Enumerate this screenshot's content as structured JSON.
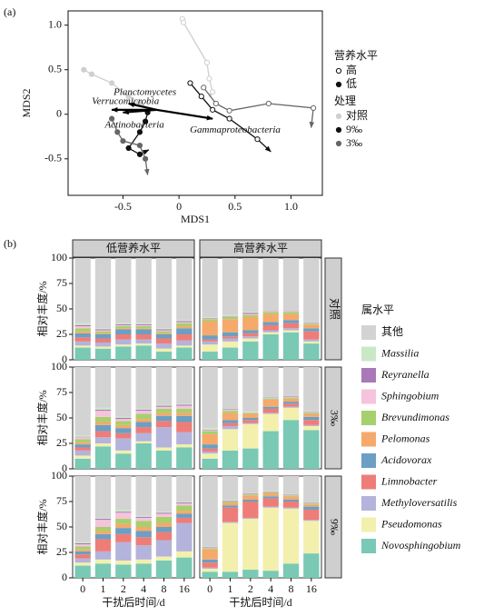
{
  "chart_data": [
    {
      "type": "scatter",
      "label": "(a)",
      "x_label": "MDS1",
      "y_label": "MDS2",
      "xlim": [
        -0.99,
        1.28
      ],
      "ylim": [
        -0.91,
        1.16
      ],
      "xticks": [
        -0.5,
        0,
        0.5,
        {
          "value": 1,
          "label": "1.0"
        }
      ],
      "yticks": [
        -0.5,
        0,
        0.5,
        {
          "value": 1,
          "label": "1.0"
        }
      ],
      "series": [
        {
          "color": "#cfcfcf",
          "marker": "open",
          "x": [
            0.03,
            0.04,
            0.25,
            0.27,
            0.3,
            0.27
          ],
          "y": [
            1.07,
            1.03,
            0.58,
            0.4,
            0.25,
            0.2
          ]
        },
        {
          "color": "#cfcfcf",
          "marker": "filled",
          "x": [
            -0.85,
            -0.78,
            -0.6,
            -0.45,
            -0.35,
            -0.3
          ],
          "y": [
            0.5,
            0.45,
            0.35,
            0.2,
            0.12,
            0.08
          ]
        },
        {
          "color": "#111111",
          "marker": "open",
          "x": [
            0.1,
            0.2,
            0.3,
            0.45,
            0.7,
            0.82
          ],
          "y": [
            0.35,
            0.2,
            0.05,
            -0.05,
            -0.28,
            -0.42
          ]
        },
        {
          "color": "#111111",
          "marker": "filled",
          "x": [
            -0.28,
            -0.3,
            -0.35,
            -0.45,
            -0.35,
            -0.27
          ],
          "y": [
            0.02,
            -0.08,
            -0.2,
            -0.38,
            -0.45,
            -0.4
          ]
        },
        {
          "color": "#666666",
          "marker": "open",
          "x": [
            0.22,
            0.33,
            0.45,
            0.8,
            1.2,
            1.18
          ],
          "y": [
            0.3,
            0.12,
            0.04,
            0.12,
            0.07,
            -0.15
          ]
        },
        {
          "color": "#666666",
          "marker": "filled",
          "x": [
            -0.6,
            -0.55,
            -0.5,
            -0.35,
            -0.3,
            -0.28
          ],
          "y": [
            -0.05,
            -0.2,
            -0.3,
            -0.35,
            -0.5,
            -0.68
          ]
        }
      ],
      "vectors": [
        {
          "label": "Planctomycetes",
          "x": [
            -0.2,
            -0.45
          ],
          "y": [
            0.05,
            0.12
          ]
        },
        {
          "label": "Verrucomicrobia",
          "x": [
            -0.2,
            -0.6
          ],
          "y": [
            0.05,
            0.05
          ]
        },
        {
          "label": "Actinobacteria",
          "x": [
            -0.2,
            -0.5
          ],
          "y": [
            0.05,
            0.02
          ]
        },
        {
          "label": "Gammaproteobacteria",
          "x": [
            -0.2,
            0.3
          ],
          "y": [
            0.05,
            -0.05
          ]
        }
      ],
      "legend": [
        {
          "title": "营养水平",
          "items": [
            {
              "label": "高",
              "marker": "open"
            },
            {
              "label": "低",
              "marker": "filled"
            }
          ]
        },
        {
          "title": "处理",
          "items": [
            {
              "label": "对照",
              "color": "#cfcfcf"
            },
            {
              "label": "9‰",
              "color": "#111111"
            },
            {
              "label": "3‰",
              "color": "#666666"
            }
          ]
        }
      ]
    },
    {
      "type": "stacked_bar",
      "label": "(b)",
      "x_label": "干扰后时间/d",
      "y_label": "相对丰度/%",
      "legend_title": "属水平",
      "columns": [
        "低营养水平",
        "高营养水平"
      ],
      "rows": [
        "对照",
        "3‰",
        "9‰"
      ],
      "categories": [
        "0",
        "1",
        "2",
        "4",
        "8",
        "16"
      ],
      "ylim": [
        0,
        100
      ],
      "yticks": [
        0,
        25,
        50,
        75,
        100
      ],
      "series": [
        {
          "name": "Novosphingobium",
          "color": "#79c9b5"
        },
        {
          "name": "Pseudomonas",
          "color": "#f2f0ac"
        },
        {
          "name": "Methyloversatilis",
          "color": "#b4b3db"
        },
        {
          "name": "Limnobacter",
          "color": "#ee7d78"
        },
        {
          "name": "Acidovorax",
          "color": "#6b9fc3"
        },
        {
          "name": "Pelomonas",
          "color": "#f5a96b"
        },
        {
          "name": "Brevundimonas",
          "color": "#a6d06c"
        },
        {
          "name": "Sphingobium",
          "color": "#f5c4dc"
        },
        {
          "name": "Reyranella",
          "color": "#a878b8"
        },
        {
          "name": "Massilia",
          "color": "#c9e8c6"
        },
        {
          "name": "其他",
          "color": "#d3d3d3"
        }
      ],
      "panels": [
        [
          [
            [
              12,
              11,
              13,
              14,
              8,
              12
            ],
            [
              2,
              2,
              2,
              2,
              3,
              2
            ],
            [
              4,
              4,
              5,
              4,
              5,
              5
            ],
            [
              4,
              4,
              5,
              5,
              5,
              6
            ],
            [
              4,
              4,
              5,
              5,
              4,
              6
            ],
            [
              2,
              1,
              1,
              1,
              1,
              2
            ],
            [
              3,
              2,
              2,
              2,
              2,
              3
            ],
            [
              2,
              1,
              1,
              1,
              1,
              1
            ],
            [
              1,
              1,
              1,
              1,
              1,
              1
            ],
            [
              2,
              1,
              1,
              1,
              1,
              1
            ],
            [
              64,
              69,
              64,
              64,
              69,
              61
            ]
          ],
          [
            [
              8,
              12,
              18,
              25,
              27,
              16
            ],
            [
              7,
              6,
              3,
              2,
              2,
              2
            ],
            [
              3,
              3,
              2,
              2,
              2,
              2
            ],
            [
              2,
              2,
              3,
              5,
              5,
              8
            ],
            [
              4,
              4,
              3,
              3,
              3,
              3
            ],
            [
              14,
              13,
              13,
              8,
              6,
              3.5
            ],
            [
              2,
              2,
              2,
              2,
              2,
              1
            ],
            [
              0.5,
              0.5,
              1,
              1,
              1,
              0.5
            ],
            [
              0.5,
              0.5,
              1,
              0.5,
              0.5,
              0.5
            ],
            [
              1,
              1,
              1,
              0.5,
              0.5,
              0.5
            ],
            [
              58,
              56,
              53,
              51,
              51,
              63
            ]
          ]
        ],
        [
          [
            [
              10,
              22,
              15,
              25,
              18,
              21
            ],
            [
              3,
              3,
              3,
              2,
              3,
              3
            ],
            [
              5,
              6,
              12,
              8,
              20,
              12
            ],
            [
              3,
              6,
              5,
              6,
              6,
              10
            ],
            [
              3,
              6,
              5,
              5,
              5,
              6
            ],
            [
              2,
              3,
              3,
              3,
              3,
              3
            ],
            [
              3,
              5,
              4,
              5,
              4,
              4
            ],
            [
              2,
              6,
              2,
              3,
              2,
              3
            ],
            [
              0.5,
              1,
              1,
              1,
              1,
              1
            ],
            [
              1.5,
              2,
              1,
              1,
              1,
              1
            ],
            [
              67,
              40,
              49,
              41,
              37,
              36
            ]
          ],
          [
            [
              10,
              18,
              20,
              37,
              48,
              38
            ],
            [
              5,
              21,
              24,
              17,
              12,
              4
            ],
            [
              2,
              3,
              1,
              1,
              1,
              1
            ],
            [
              3,
              3,
              3,
              4,
              3,
              5
            ],
            [
              4,
              3,
              2,
              2,
              2,
              3
            ],
            [
              10,
              7,
              4,
              7,
              3,
              3
            ],
            [
              3,
              2,
              1,
              1,
              1,
              1
            ],
            [
              1,
              1,
              0.5,
              0.5,
              0.5,
              0.5
            ],
            [
              0.5,
              0.5,
              0,
              0.5,
              0.5,
              0.5
            ],
            [
              1.5,
              0.5,
              0.5,
              0.5,
              0.5,
              0.5
            ],
            [
              60,
              41,
              44,
              29.5,
              28.5,
              43.5
            ]
          ]
        ],
        [
          [
            [
              12,
              14,
              13,
              14,
              17,
              20
            ],
            [
              3,
              4,
              4,
              4,
              4,
              6
            ],
            [
              4,
              8,
              18,
              14,
              16,
              28
            ],
            [
              4,
              12,
              8,
              8,
              8,
              5
            ],
            [
              3,
              5,
              6,
              6,
              5,
              4
            ],
            [
              2,
              3,
              4,
              4,
              4,
              3
            ],
            [
              3,
              4,
              5,
              6,
              6,
              5
            ],
            [
              2,
              7,
              6,
              3,
              3,
              2
            ],
            [
              1,
              1,
              1,
              1,
              1,
              1
            ],
            [
              1,
              1,
              2,
              1,
              1,
              1
            ],
            [
              65,
              41,
              33,
              39,
              35,
              25
            ]
          ],
          [
            [
              6,
              6,
              8,
              7,
              14,
              24
            ],
            [
              3,
              48,
              50,
              62,
              54,
              32
            ],
            [
              1,
              1,
              1,
              1,
              1,
              1
            ],
            [
              5,
              14,
              16,
              8,
              6,
              10
            ],
            [
              3,
              2,
              2,
              2,
              2,
              3
            ],
            [
              10,
              3,
              4,
              3,
              3,
              2
            ],
            [
              1,
              1,
              1,
              1,
              1,
              1
            ],
            [
              0.5,
              0.5,
              0.5,
              0.5,
              0.5,
              0.5
            ],
            [
              0.5,
              0.5,
              0.5,
              0.5,
              0.5,
              0.5
            ],
            [
              0.5,
              0.5,
              0.5,
              0.5,
              0.5,
              0.5
            ],
            [
              69.5,
              23.5,
              16.5,
              14.5,
              17.5,
              25.5
            ]
          ]
        ]
      ]
    }
  ]
}
